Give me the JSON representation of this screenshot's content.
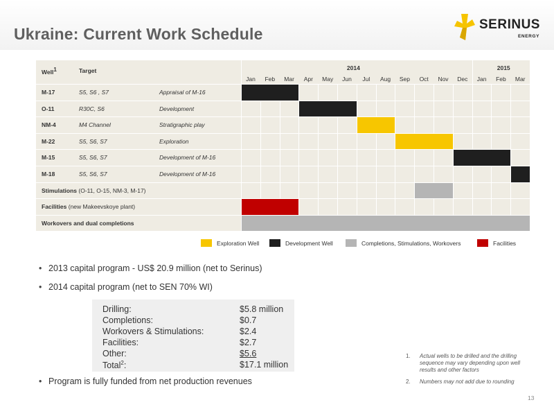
{
  "slide": {
    "title": "Ukraine: Current Work Schedule",
    "page_number": "13"
  },
  "logo": {
    "name": "SERINUS",
    "sub": "ENERGY",
    "colors": {
      "yellow": "#f6c400",
      "dark": "#222222"
    }
  },
  "schedule": {
    "headers": {
      "well": "Well",
      "well_sup": "1",
      "target": "Target"
    },
    "years": [
      {
        "label": "2014",
        "month_start": 0
      },
      {
        "label": "2015",
        "month_start": 12
      }
    ],
    "months": [
      "Jan",
      "Feb",
      "Mar",
      "Apr",
      "May",
      "Jun",
      "Jul",
      "Aug",
      "Sep",
      "Oct",
      "Nov",
      "Dec",
      "Jan",
      "Feb",
      "Mar"
    ],
    "rows": [
      {
        "well": "M-17",
        "target": "S5, S6 , S7",
        "purpose": "Appraisal of M-16",
        "bars": [
          {
            "start": 0,
            "end": 3,
            "type": "development"
          }
        ]
      },
      {
        "well": "O-11",
        "target": "R30C, S6",
        "purpose": "Development",
        "bars": [
          {
            "start": 3,
            "end": 6,
            "type": "development"
          }
        ]
      },
      {
        "well": "NM-4",
        "target": "M4 Channel",
        "purpose": "Stratigraphic play",
        "bars": [
          {
            "start": 6,
            "end": 8,
            "type": "exploration"
          }
        ]
      },
      {
        "well": "M-22",
        "target": "S5, S6, S7",
        "purpose": "Exploration",
        "bars": [
          {
            "start": 8,
            "end": 11,
            "type": "exploration"
          }
        ]
      },
      {
        "well": "M-15",
        "target": "S5, S6, S7",
        "purpose": "Development  of M-16",
        "bars": [
          {
            "start": 11,
            "end": 14,
            "type": "development"
          }
        ]
      },
      {
        "well": "M-18",
        "target": "S5, S6, S7",
        "purpose": "Development of M-16",
        "bars": [
          {
            "start": 14,
            "end": 15,
            "type": "development"
          }
        ]
      }
    ],
    "wide_rows": [
      {
        "label_bold": "Stimulations",
        "label_rest": " (O-11, O-15, NM-3, M-17)",
        "bars": [
          {
            "start": 9,
            "end": 11,
            "type": "completions"
          }
        ]
      },
      {
        "label_bold": "Facilities",
        "label_rest": "   (new Makeevskoye plant)",
        "bars": [
          {
            "start": 0,
            "end": 3,
            "type": "facilities"
          }
        ]
      },
      {
        "label_bold": "Workovers and dual completion",
        "label_rest": "s",
        "bars": [
          {
            "start": 0,
            "end": 15,
            "type": "completions"
          }
        ]
      }
    ],
    "colors": {
      "exploration": "#f7c600",
      "development": "#1f1f1f",
      "completions": "#b5b5b5",
      "facilities": "#c00000"
    }
  },
  "legend": [
    {
      "type": "exploration",
      "label": "Exploration Well"
    },
    {
      "type": "development",
      "label": "Development Well"
    },
    {
      "type": "completions",
      "label": "Completions, Stimulations, Workovers"
    },
    {
      "type": "facilities",
      "label": "Facilities"
    }
  ],
  "bullets": [
    "2013 capital program - US$ 20.9 million (net to Serinus)",
    "2014 capital program (net to SEN 70% WI)",
    "Program is fully funded from net production revenues"
  ],
  "capex": {
    "rows": [
      {
        "label": "Drilling:",
        "value": "$5.8 million"
      },
      {
        "label": "Completions:",
        "value": "$0.7"
      },
      {
        "label": "Workovers & Stimulations:",
        "value": "$2.4"
      },
      {
        "label": "Facilities:",
        "value": "$2.7"
      },
      {
        "label": "Other:",
        "value": "$5.6"
      },
      {
        "label": "Total",
        "label_sup": "2",
        "label_suffix": ":",
        "value": "$17.1 million"
      }
    ]
  },
  "footnotes": [
    {
      "num": "1.",
      "text": "Actual wells to be drilled and the drilling sequence may vary depending upon well results and other factors"
    },
    {
      "num": "2.",
      "text": "Numbers may not add due to rounding"
    }
  ]
}
